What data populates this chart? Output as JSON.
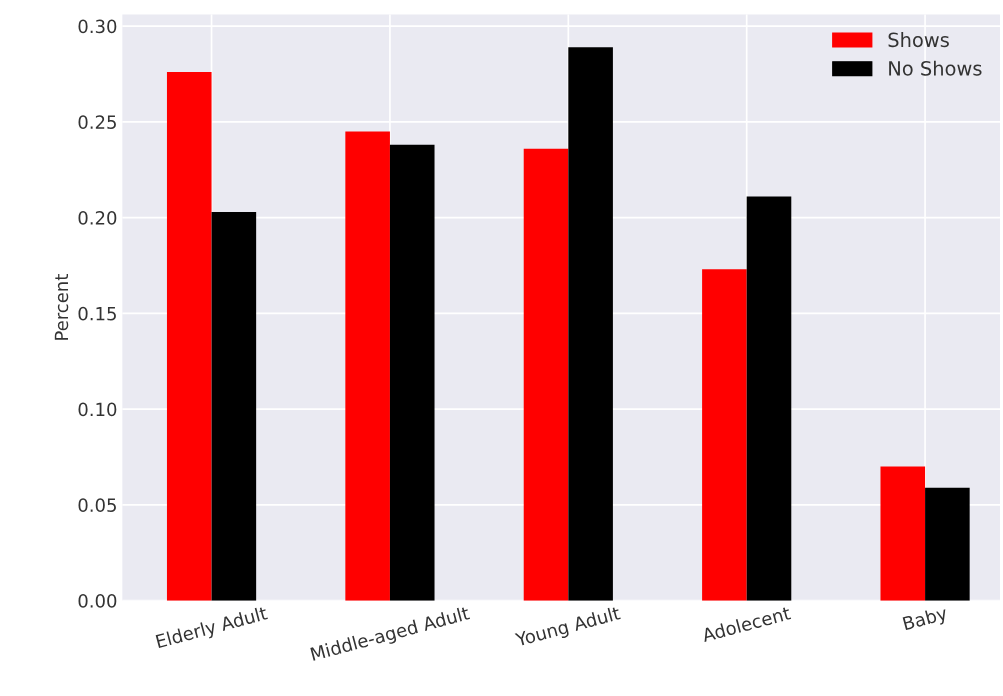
{
  "chart_data": {
    "type": "bar",
    "ylabel": "Percent",
    "categories": [
      "Elderly Adult",
      "Middle-aged Adult",
      "Young Adult",
      "Adolecent",
      "Baby"
    ],
    "series": [
      {
        "name": "Shows",
        "color": "#ff0000",
        "values": [
          0.276,
          0.245,
          0.236,
          0.173,
          0.07
        ]
      },
      {
        "name": "No Shows",
        "color": "#000000",
        "values": [
          0.203,
          0.238,
          0.289,
          0.211,
          0.059
        ]
      }
    ],
    "ylim": [
      0,
      0.306
    ],
    "yticks": [
      {
        "value": 0,
        "label": "0.00"
      },
      {
        "value": 0.05,
        "label": "0.05"
      },
      {
        "value": 0.1,
        "label": "0.10"
      },
      {
        "value": 0.15,
        "label": "0.15"
      },
      {
        "value": 0.2,
        "label": "0.20"
      },
      {
        "value": 0.25,
        "label": "0.25"
      },
      {
        "value": 0.3,
        "label": "0.30"
      }
    ],
    "grid": true,
    "legend": "top right"
  }
}
